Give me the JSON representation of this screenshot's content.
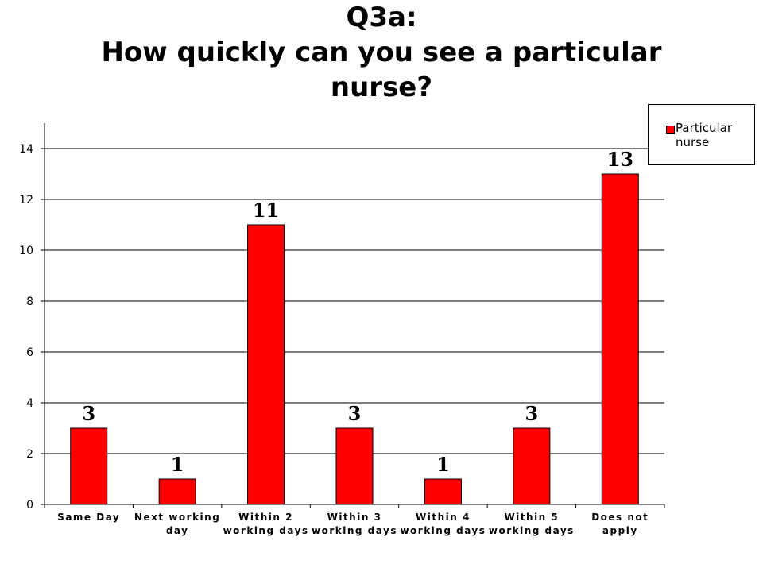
{
  "chart_data": {
    "type": "bar",
    "title": "Q3a: How quickly can you see a particular nurse?",
    "title_lines": [
      "Q3a:",
      "How quickly can you see a particular",
      "nurse?"
    ],
    "xlabel": "",
    "ylabel": "",
    "categories": [
      "Same Day",
      "Next working day",
      "Within 2 working days",
      "Within 3 working days",
      "Within 4 working days",
      "Within 5 working days",
      "Does not apply"
    ],
    "category_lines": [
      [
        "Same Day"
      ],
      [
        "Next working",
        "day"
      ],
      [
        "Within 2",
        "working days"
      ],
      [
        "Within 3",
        "working days"
      ],
      [
        "Within 4",
        "working days"
      ],
      [
        "Within 5",
        "working days"
      ],
      [
        "Does not",
        "apply"
      ]
    ],
    "series": [
      {
        "name": "Particular nurse",
        "values": [
          3,
          1,
          11,
          3,
          1,
          3,
          13
        ],
        "color": "#ff0000"
      }
    ],
    "ylim": [
      0,
      15
    ],
    "yticks": [
      0,
      2,
      4,
      6,
      8,
      10,
      12,
      14
    ],
    "grid": true,
    "legend_position": "top-right",
    "data_labels": true
  }
}
